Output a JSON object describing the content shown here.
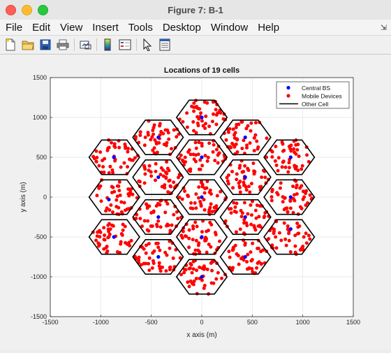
{
  "window": {
    "title": "Figure 7: B-1",
    "controls": [
      "close",
      "minimize",
      "zoom"
    ]
  },
  "menubar": {
    "items": [
      "File",
      "Edit",
      "View",
      "Insert",
      "Tools",
      "Desktop",
      "Window",
      "Help"
    ],
    "pin_icon": "dock-pin-icon"
  },
  "toolbar": {
    "icons": [
      "new-figure-icon",
      "open-file-icon",
      "save-icon",
      "print-icon",
      "link-plot-icon",
      "insert-colorbar-icon",
      "insert-legend-icon",
      "edit-plot-pointer-icon",
      "property-inspector-icon"
    ]
  },
  "colors": {
    "bs": "#0000ff",
    "mobile": "#ff0000",
    "cell_edge": "#000000"
  },
  "chart_data": {
    "type": "scatter",
    "title": "Locations of 19 cells",
    "xlabel": "x axis (m)",
    "ylabel": "y axis (m)",
    "xlim": [
      -1500,
      1500
    ],
    "ylim": [
      -1500,
      1500
    ],
    "xticks": [
      -1500,
      -1000,
      -500,
      0,
      500,
      1000,
      1500
    ],
    "yticks": [
      -1500,
      -1000,
      -500,
      0,
      500,
      1000,
      1500
    ],
    "grid": true,
    "legend_position": "top-right",
    "cell_radius": 250,
    "devices_per_cell": 45,
    "legend": [
      {
        "label": "Central BS",
        "marker": "dot",
        "color": "#0000ff"
      },
      {
        "label": "Mobile Devices",
        "marker": "dot",
        "color": "#ff0000"
      },
      {
        "label": "Other Cell",
        "marker": "line",
        "color": "#000000"
      }
    ],
    "base_stations": [
      {
        "x": 0,
        "y": 0
      },
      {
        "x": 0,
        "y": -500
      },
      {
        "x": 0,
        "y": 1000
      },
      {
        "x": -430,
        "y": 750
      },
      {
        "x": -430,
        "y": 250
      },
      {
        "x": -430,
        "y": -250
      },
      {
        "x": -430,
        "y": -750
      },
      {
        "x": 430,
        "y": 750
      },
      {
        "x": 430,
        "y": 250
      },
      {
        "x": 430,
        "y": -250
      },
      {
        "x": 430,
        "y": -750
      },
      {
        "x": 880,
        "y": 500
      },
      {
        "x": 880,
        "y": 0
      },
      {
        "x": 880,
        "y": -400
      },
      {
        "x": -870,
        "y": 500
      },
      {
        "x": -920,
        "y": -30
      },
      {
        "x": -870,
        "y": -500
      },
      {
        "x": 0,
        "y": 500
      },
      {
        "x": 0,
        "y": -1000
      }
    ],
    "cells": [
      {
        "x": 0,
        "y": 0
      },
      {
        "x": 0,
        "y": 500
      },
      {
        "x": 0,
        "y": -500
      },
      {
        "x": 0,
        "y": 1000
      },
      {
        "x": 0,
        "y": -1000
      },
      {
        "x": -433,
        "y": 750
      },
      {
        "x": -433,
        "y": 250
      },
      {
        "x": -433,
        "y": -250
      },
      {
        "x": -433,
        "y": -750
      },
      {
        "x": 433,
        "y": 750
      },
      {
        "x": 433,
        "y": 250
      },
      {
        "x": 433,
        "y": -250
      },
      {
        "x": 433,
        "y": -750
      },
      {
        "x": -866,
        "y": 500
      },
      {
        "x": -866,
        "y": 0
      },
      {
        "x": -866,
        "y": -500
      },
      {
        "x": 866,
        "y": 500
      },
      {
        "x": 866,
        "y": 0
      },
      {
        "x": 866,
        "y": -500
      }
    ]
  }
}
